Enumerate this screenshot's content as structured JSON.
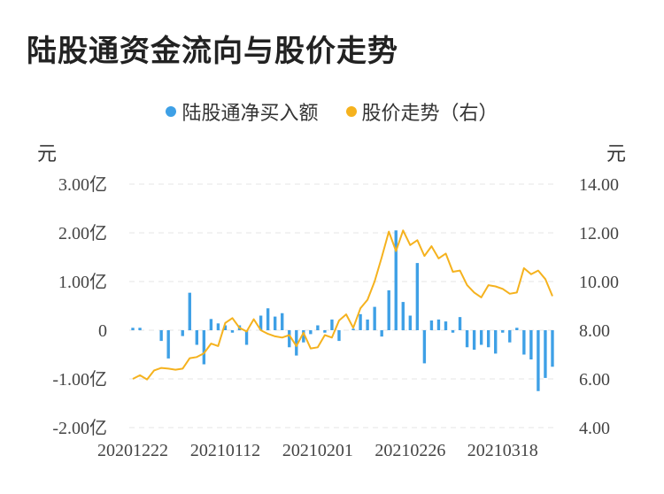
{
  "page": {
    "title": "陆股通资金流向与股价走势"
  },
  "chart_data": {
    "type": "bar+line",
    "title": "陆股通资金流向与股价走势",
    "left_unit": "元",
    "right_unit": "元",
    "legend": [
      {
        "name": "陆股通净买入额",
        "color": "#3ea0e6"
      },
      {
        "name": "股价走势（右）",
        "color": "#f5b21e"
      }
    ],
    "left_axis": {
      "min": -2.0,
      "max": 3.0,
      "ticks": [
        3,
        2,
        1,
        0,
        -1,
        -2
      ],
      "tick_labels": [
        "3.00亿",
        "2.00亿",
        "1.00亿",
        "0",
        "-1.00亿",
        "-2.00亿"
      ]
    },
    "right_axis": {
      "min": 4.0,
      "max": 14.0,
      "ticks": [
        14,
        12,
        10,
        8,
        6,
        4
      ],
      "tick_labels": [
        "14.00",
        "12.00",
        "10.00",
        "8.00",
        "6.00",
        "4.00"
      ]
    },
    "x_tick_labels": [
      "20201222",
      "20210112",
      "20210201",
      "20210226",
      "20210318"
    ],
    "x_tick_positions": [
      0,
      13,
      26,
      39,
      52
    ],
    "grid": true,
    "legend_position": "top-center",
    "series": [
      {
        "name": "陆股通净买入额",
        "type": "bar",
        "axis": "left",
        "color": "#3ea0e6",
        "values": [
          0.05,
          0.05,
          0,
          0,
          -0.22,
          -0.58,
          0,
          -0.12,
          0.77,
          -0.3,
          -0.7,
          0.23,
          0.14,
          0.1,
          -0.05,
          0.1,
          -0.3,
          0,
          0.3,
          0.45,
          0.28,
          0.35,
          -0.35,
          -0.52,
          -0.25,
          -0.08,
          0.1,
          -0.05,
          0.22,
          -0.22,
          0,
          0.03,
          0.33,
          0.22,
          0.48,
          -0.13,
          0.82,
          2.05,
          0.58,
          0.3,
          1.38,
          -0.68,
          0.2,
          0.22,
          0.18,
          -0.05,
          0.27,
          -0.35,
          -0.4,
          -0.3,
          -0.35,
          -0.48,
          -0.05,
          -0.25,
          0.05,
          -0.5,
          -0.6,
          -1.25,
          -0.98,
          -0.75
        ]
      },
      {
        "name": "股价走势（右）",
        "type": "line",
        "axis": "right",
        "color": "#f5b21e",
        "values": [
          6.0,
          6.15,
          5.98,
          6.35,
          6.45,
          6.42,
          6.38,
          6.42,
          6.85,
          6.9,
          7.05,
          7.45,
          7.35,
          8.3,
          8.5,
          8.1,
          7.95,
          8.45,
          8.0,
          7.85,
          7.75,
          7.7,
          7.8,
          7.35,
          7.9,
          7.25,
          7.3,
          7.8,
          7.7,
          8.4,
          8.65,
          8.1,
          8.9,
          9.25,
          10.0,
          11.0,
          12.05,
          11.25,
          12.1,
          11.5,
          11.7,
          11.05,
          11.45,
          10.95,
          11.15,
          10.4,
          10.45,
          9.85,
          9.55,
          9.35,
          9.85,
          9.8,
          9.7,
          9.5,
          9.55,
          10.55,
          10.3,
          10.45,
          10.1,
          9.4
        ]
      }
    ]
  }
}
